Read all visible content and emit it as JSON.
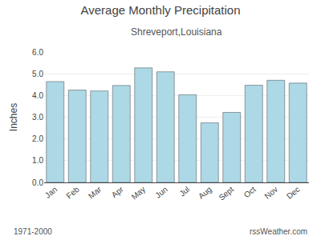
{
  "chart_data": {
    "type": "bar",
    "title": "Average Monthly Precipitation",
    "subtitle": "Shreveport,Louisiana",
    "ylabel": "Inches",
    "categories": [
      "Jan",
      "Feb",
      "Mar",
      "Apr",
      "May",
      "Jun",
      "Jul",
      "Aug",
      "Sept",
      "Oct",
      "Nov",
      "Dec"
    ],
    "values": [
      4.64,
      4.25,
      4.21,
      4.46,
      5.27,
      5.09,
      4.03,
      2.74,
      3.22,
      4.47,
      4.7,
      4.57
    ],
    "color": "#ADD8E6",
    "ylim": [
      0.0,
      6.0
    ],
    "yticks": [
      {
        "value": 0.0,
        "label": "0.0"
      },
      {
        "value": 1.0,
        "label": "1.0"
      },
      {
        "value": 2.0,
        "label": "2.0"
      },
      {
        "value": 3.0,
        "label": "3.0"
      },
      {
        "value": 4.0,
        "label": "4.0"
      },
      {
        "value": 5.0,
        "label": "5.0"
      },
      {
        "value": 6.0,
        "label": "6.0"
      }
    ],
    "grid": true,
    "annotations": [
      "1971-2000",
      "rssWeather.com"
    ]
  }
}
